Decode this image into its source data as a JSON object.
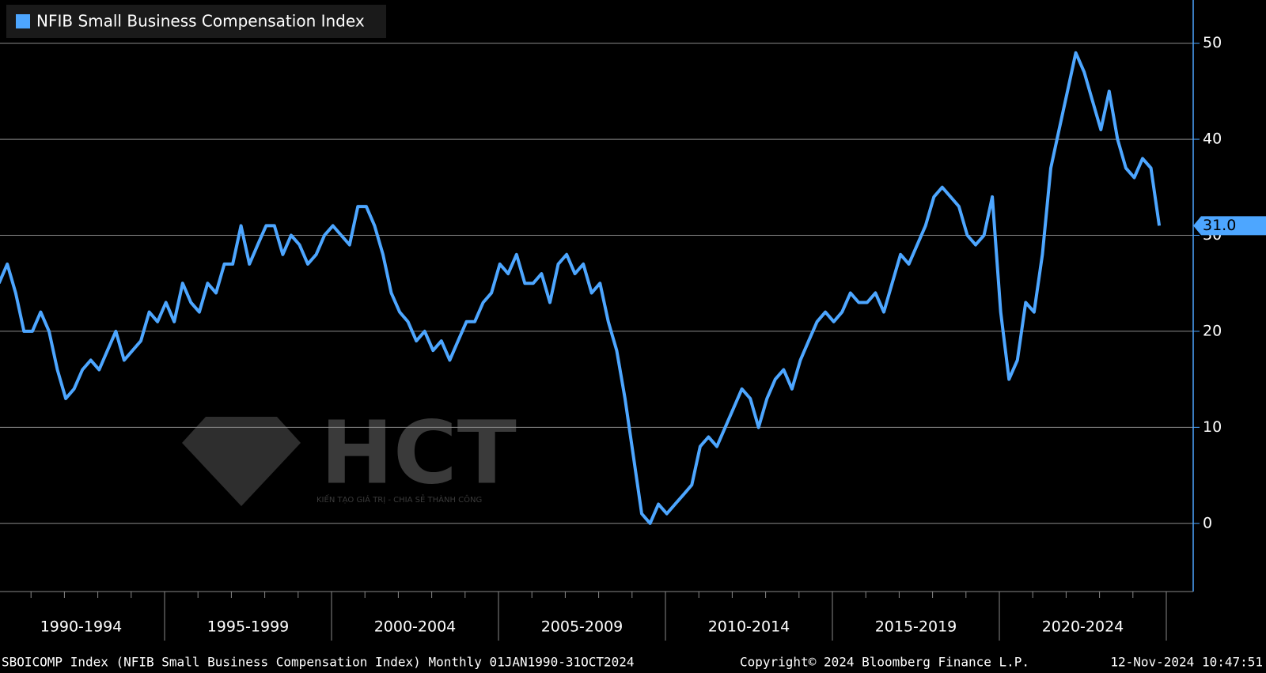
{
  "chart_data": {
    "type": "line",
    "legend": "NFIB Small Business Compensation Index",
    "xgroups": [
      "1990-1994",
      "1995-1999",
      "2000-2004",
      "2005-2009",
      "2010-2014",
      "2015-2019",
      "2020-2024"
    ],
    "series": [
      {
        "name": "NFIB Small Business Compensation Index",
        "color": "#4da6ff",
        "values": [
          25,
          27,
          24,
          20,
          20,
          22,
          20,
          16,
          13,
          14,
          16,
          17,
          16,
          18,
          20,
          17,
          18,
          19,
          22,
          21,
          23,
          21,
          25,
          23,
          22,
          25,
          24,
          27,
          27,
          31,
          27,
          29,
          31,
          31,
          28,
          30,
          29,
          27,
          28,
          30,
          31,
          30,
          29,
          33,
          33,
          31,
          28,
          24,
          22,
          21,
          19,
          20,
          18,
          19,
          17,
          19,
          21,
          21,
          23,
          24,
          27,
          26,
          28,
          25,
          25,
          26,
          23,
          27,
          28,
          26,
          27,
          24,
          25,
          21,
          18,
          13,
          7,
          1,
          0,
          2,
          1,
          2,
          3,
          4,
          8,
          9,
          8,
          10,
          12,
          14,
          13,
          10,
          13,
          15,
          16,
          14,
          17,
          19,
          21,
          22,
          21,
          22,
          24,
          23,
          23,
          24,
          22,
          25,
          28,
          27,
          29,
          31,
          34,
          35,
          34,
          33,
          30,
          29,
          30,
          34,
          22,
          15,
          17,
          23,
          22,
          28,
          37,
          41,
          45,
          49,
          47,
          44,
          41,
          45,
          40,
          37,
          36,
          38,
          37,
          31
        ]
      }
    ],
    "last_value_label": "31.0",
    "ylim": [
      -7.1,
      54.5
    ],
    "yticks": [
      0,
      10,
      20,
      30,
      40,
      50
    ],
    "grid": true,
    "watermark": {
      "logo": "HCT",
      "tagline": "KIẾN TẠO GIÁ TRỊ - CHIA SẺ THÀNH CÔNG"
    },
    "footer": {
      "left": "SBOICOMP Index (NFIB Small Business Compensation Index)  Monthly 01JAN1990-31OCT2024",
      "center": "Copyright© 2024 Bloomberg Finance L.P.",
      "right": "12-Nov-2024 10:47:51"
    }
  }
}
